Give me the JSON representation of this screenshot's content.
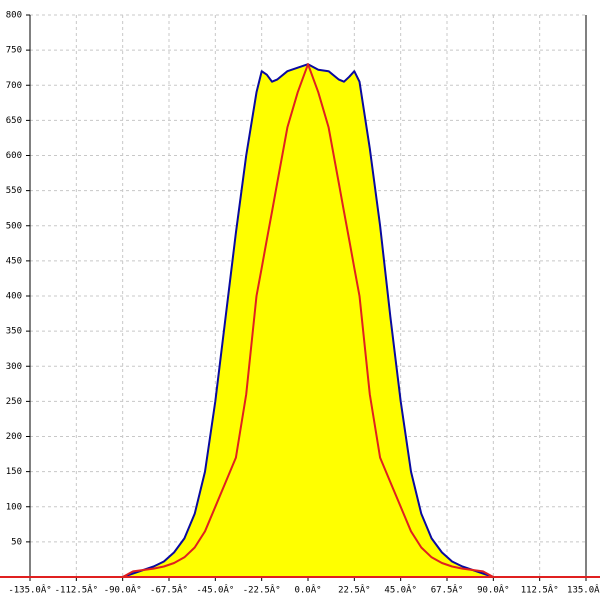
{
  "chart_data": {
    "type": "line",
    "x": [
      -90,
      -85,
      -80,
      -75,
      -70,
      -65,
      -60,
      -55,
      -50,
      -45,
      -40,
      -35,
      -30,
      -25,
      -22.5,
      -20,
      -17.5,
      -15,
      -10,
      -5,
      0,
      5,
      10,
      15,
      17.5,
      20,
      22.5,
      25,
      30,
      35,
      40,
      45,
      50,
      55,
      60,
      65,
      70,
      75,
      80,
      85,
      90
    ],
    "series": [
      {
        "color": "#0a0aa0",
        "fill": "#ffff00",
        "values": [
          0,
          5,
          10,
          15,
          22,
          35,
          55,
          90,
          150,
          250,
          370,
          490,
          600,
          690,
          720,
          715,
          705,
          708,
          720,
          725,
          730,
          722,
          720,
          708,
          705,
          712,
          720,
          705,
          610,
          500,
          370,
          250,
          150,
          90,
          55,
          35,
          22,
          15,
          10,
          5,
          0
        ]
      },
      {
        "color": "#e02020",
        "values": [
          0,
          8,
          10,
          12,
          15,
          20,
          28,
          42,
          65,
          100,
          135,
          170,
          260,
          400,
          440,
          480,
          520,
          560,
          640,
          690,
          730,
          690,
          640,
          560,
          520,
          480,
          440,
          400,
          260,
          170,
          135,
          100,
          65,
          42,
          28,
          20,
          15,
          12,
          10,
          8,
          0
        ]
      }
    ],
    "xlim": [
      -135,
      135
    ],
    "xticks": [
      {
        "value": -135,
        "label": "-135.0Â°"
      },
      {
        "value": -112.5,
        "label": "-112.5Â°"
      },
      {
        "value": -90,
        "label": "-90.0Â°"
      },
      {
        "value": -67.5,
        "label": "-67.5Â°"
      },
      {
        "value": -45,
        "label": "-45.0Â°"
      },
      {
        "value": -22.5,
        "label": "-22.5Â°"
      },
      {
        "value": 0,
        "label": "0.0Â°"
      },
      {
        "value": 22.5,
        "label": "22.5Â°"
      },
      {
        "value": 45,
        "label": "45.0Â°"
      },
      {
        "value": 67.5,
        "label": "67.5Â°"
      },
      {
        "value": 90,
        "label": "90.0Â°"
      },
      {
        "value": 112.5,
        "label": "112.5Â°"
      },
      {
        "value": 135,
        "label": "135.0Â°"
      }
    ],
    "ylim": [
      0,
      800
    ],
    "yticks": [
      50,
      100,
      150,
      200,
      250,
      300,
      350,
      400,
      450,
      500,
      550,
      600,
      650,
      700,
      750,
      800
    ],
    "grid": true
  }
}
